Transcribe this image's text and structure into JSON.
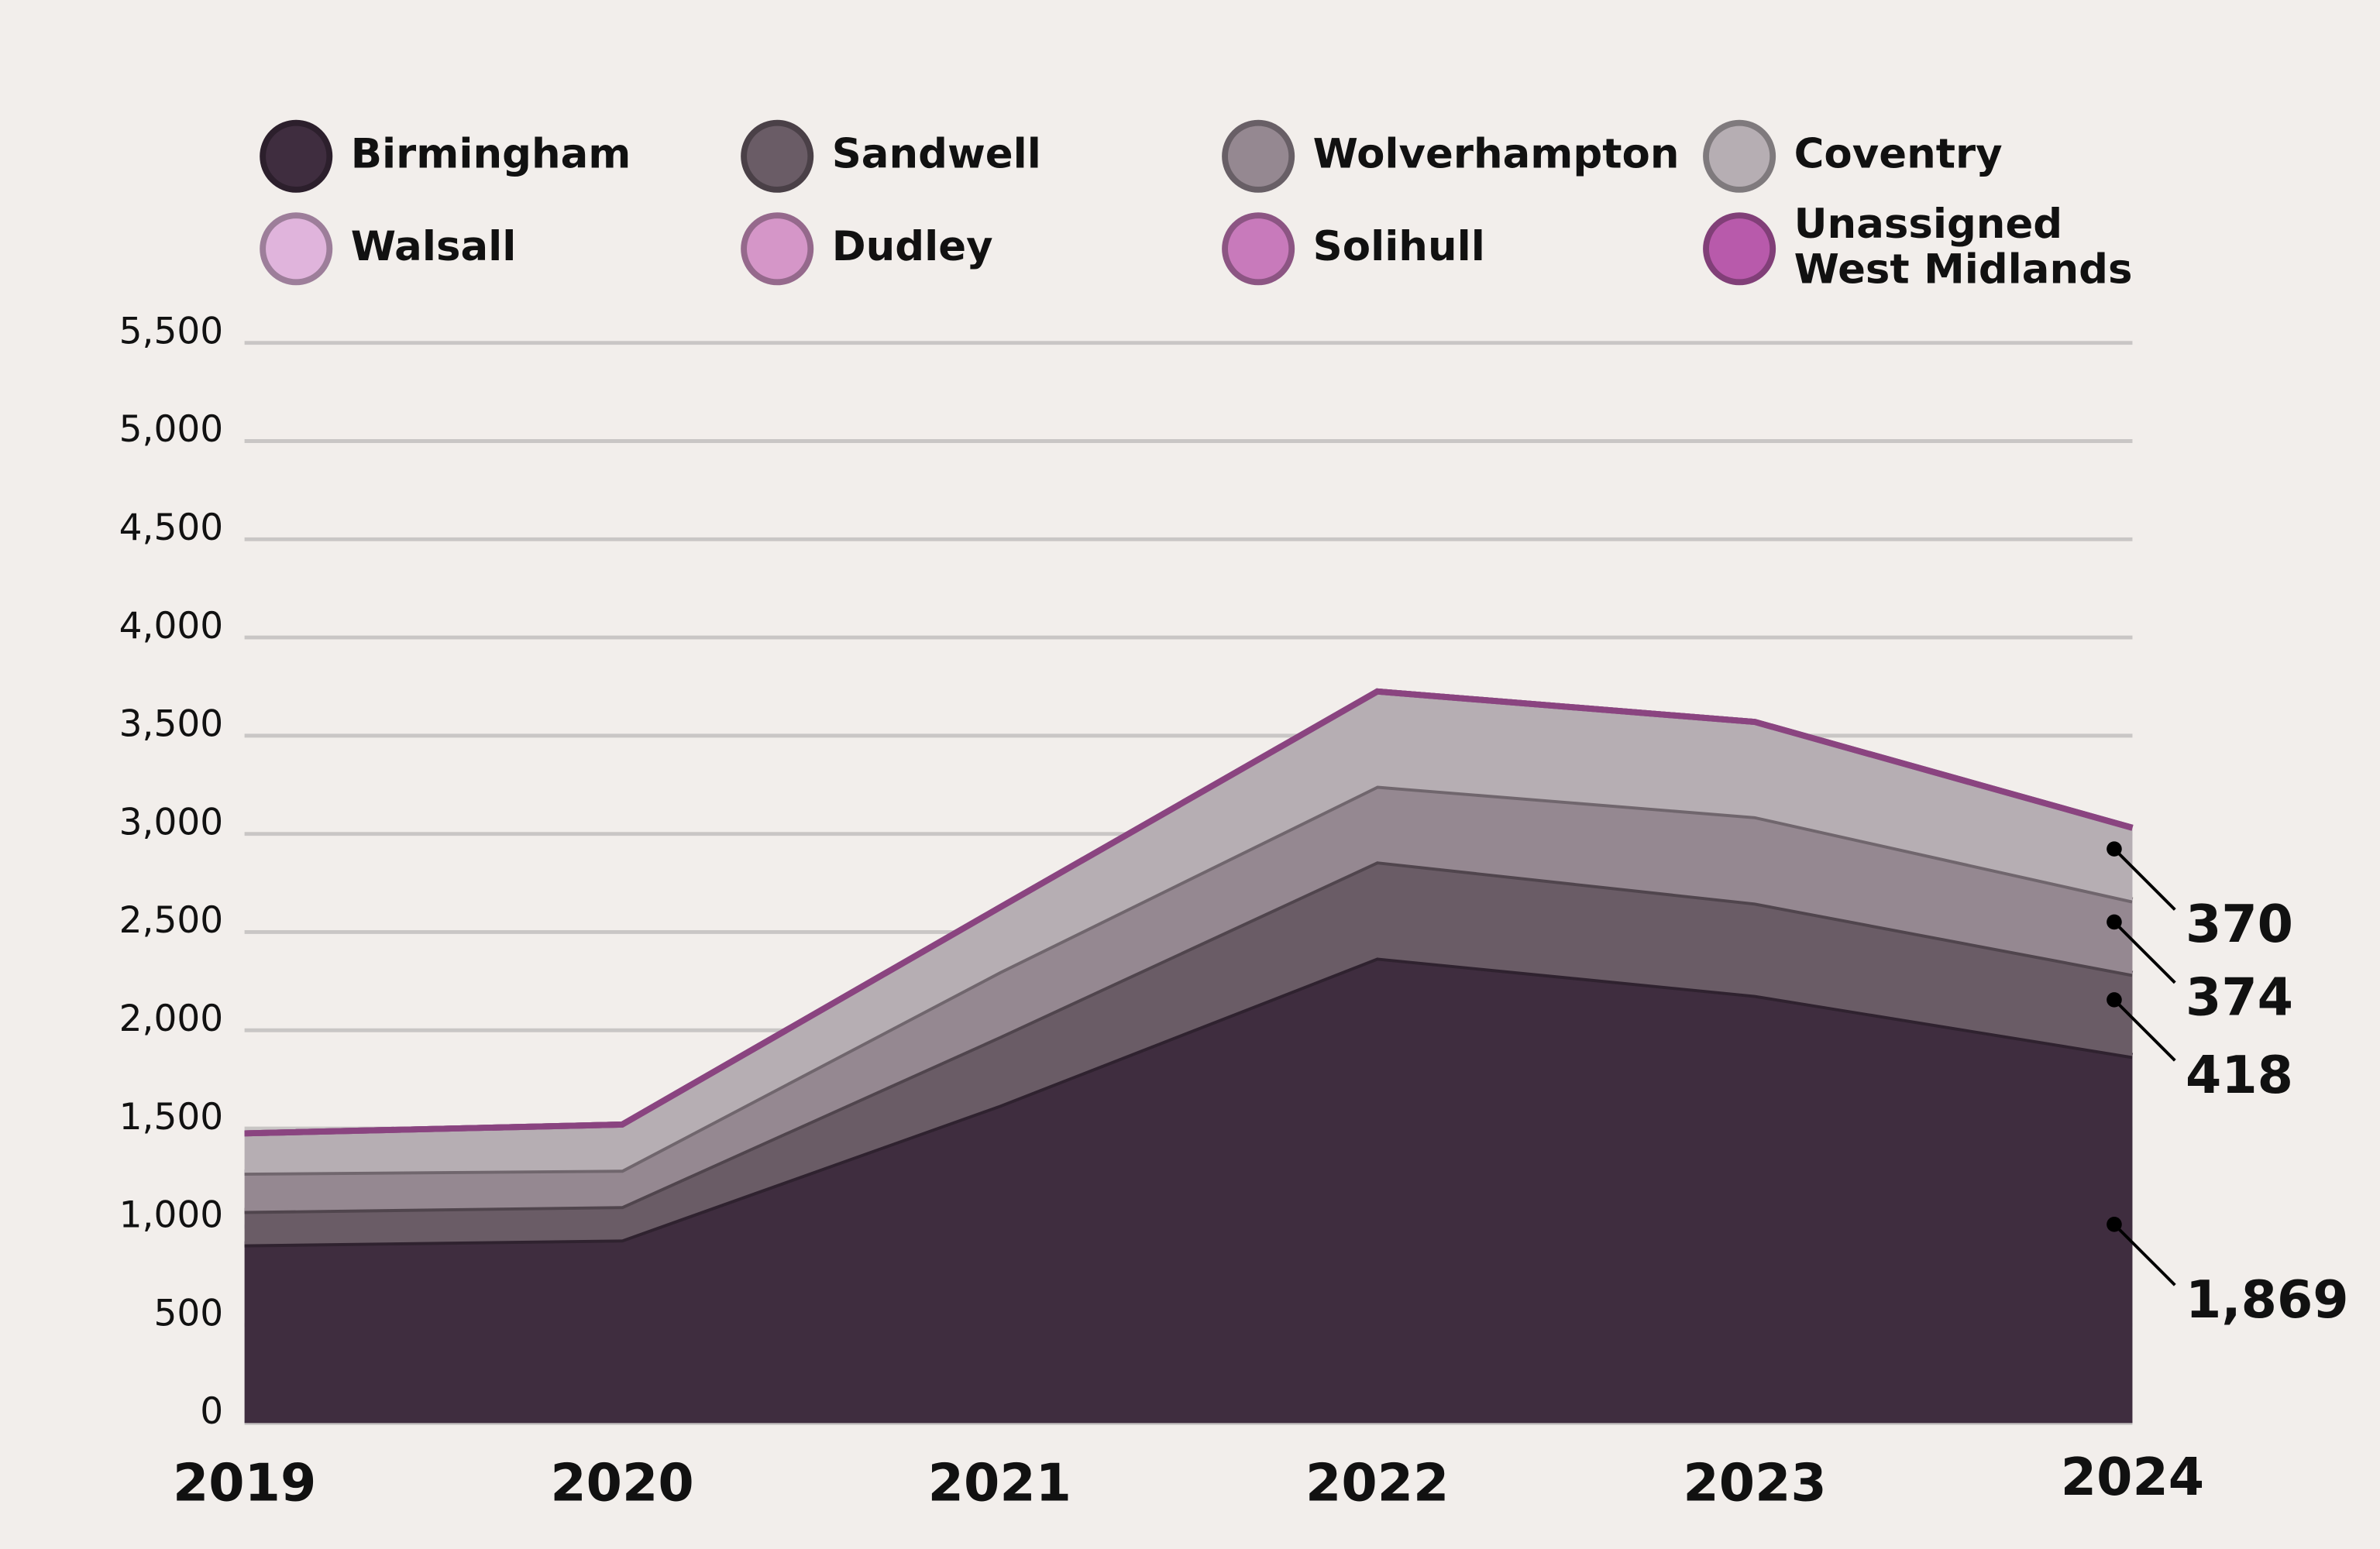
{
  "chart_data": {
    "type": "stacked-area",
    "categories": [
      "2019",
      "2020",
      "2021",
      "2022",
      "2023",
      "2024"
    ],
    "series": [
      {
        "name": "Birmingham",
        "color": "#3f2d3f",
        "values": [
          910,
          935,
          1620,
          2370,
          2180,
          1869
        ],
        "value_labels": [
          null,
          null,
          null,
          null,
          null,
          "1,869"
        ]
      },
      {
        "name": "Sandwell",
        "color": "#6a5c66",
        "values": [
          170,
          170,
          350,
          490,
          470,
          418
        ]
      },
      {
        "name": "Wolverhampton",
        "color": "#958891",
        "values": [
          195,
          185,
          330,
          385,
          440,
          374
        ]
      },
      {
        "name": "Coventry",
        "color": "#b6aeb3",
        "values": [
          200,
          230,
          325,
          480,
          480,
          370
        ]
      },
      {
        "name": "Walsall",
        "color": "#e0b4dc",
        "values": [
          0,
          0,
          0,
          0,
          0,
          0
        ]
      },
      {
        "name": "Dudley",
        "color": "#d596c8",
        "values": [
          0,
          0,
          0,
          0,
          0,
          0
        ]
      },
      {
        "name": "Solihull",
        "color": "#c87abb",
        "values": [
          0,
          0,
          0,
          0,
          0,
          0
        ]
      },
      {
        "name": "Unassigned West Midlands",
        "color": "#b85aab",
        "values": [
          0,
          0,
          0,
          0,
          0,
          0
        ]
      }
    ],
    "ylim": [
      0,
      5500
    ],
    "yticks": [
      0,
      500,
      {
        "value": 1000,
        "label": "1,000"
      },
      {
        "value": 1500,
        "label": "1,500"
      },
      {
        "value": 2000,
        "label": "2,000"
      },
      {
        "value": 2500,
        "label": "2,500"
      },
      {
        "value": 3000,
        "label": "3,000"
      },
      {
        "value": 3500,
        "label": "3,500"
      },
      {
        "value": 4000,
        "label": "4,000"
      },
      {
        "value": 4500,
        "label": "4,500"
      },
      {
        "value": 5000,
        "label": "5,000"
      },
      {
        "value": 5500,
        "label": "5,500"
      }
    ],
    "grid": true
  }
}
